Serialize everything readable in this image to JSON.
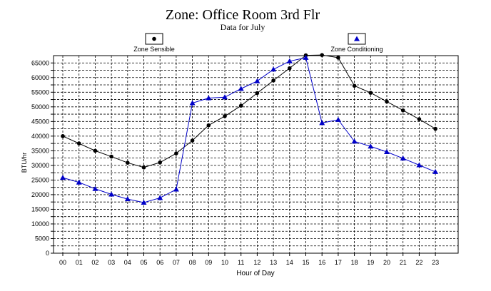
{
  "chart_data": {
    "type": "line",
    "title": "Zone: Office Room 3rd Flr",
    "subtitle": "Data for July",
    "xlabel": "Hour of Day",
    "ylabel": "BTU/hr",
    "categories": [
      "00",
      "01",
      "02",
      "03",
      "04",
      "05",
      "06",
      "07",
      "08",
      "09",
      "10",
      "11",
      "12",
      "13",
      "14",
      "15",
      "16",
      "17",
      "18",
      "19",
      "20",
      "21",
      "22",
      "23"
    ],
    "ylim": [
      0,
      67500
    ],
    "yticks": [
      0,
      2500,
      5000,
      7500,
      10000,
      12500,
      15000,
      17500,
      20000,
      22500,
      25000,
      27500,
      30000,
      32500,
      35000,
      37500,
      40000,
      42500,
      45000,
      47500,
      50000,
      52500,
      55000,
      57500,
      60000,
      62500,
      65000
    ],
    "ytick_labels": [
      "0",
      "",
      "5000",
      "",
      "10000",
      "",
      "15000",
      "",
      "20000",
      "",
      "25000",
      "",
      "30000",
      "",
      "35000",
      "",
      "40000",
      "",
      "45000",
      "",
      "50000",
      "",
      "55000",
      "",
      "60000",
      "",
      "65000"
    ],
    "grid": true,
    "legend_placement": "top",
    "series": [
      {
        "name": "Zone Sensible",
        "color": "#000000",
        "marker": "circle",
        "values": [
          40000,
          37500,
          35000,
          33000,
          30900,
          29300,
          31000,
          34100,
          38500,
          43700,
          46800,
          50400,
          54700,
          59000,
          63200,
          67600,
          67700,
          66800,
          57200,
          54800,
          51800,
          48800,
          45800,
          42500
        ]
      },
      {
        "name": "Zone Conditioning",
        "color": "#0000c8",
        "marker": "triangle",
        "values": [
          25800,
          24200,
          22000,
          20100,
          18500,
          17300,
          18900,
          21800,
          51300,
          53000,
          53300,
          56200,
          58800,
          62800,
          65600,
          66800,
          44500,
          45600,
          38200,
          36500,
          34600,
          32400,
          30100,
          27800
        ]
      }
    ]
  }
}
